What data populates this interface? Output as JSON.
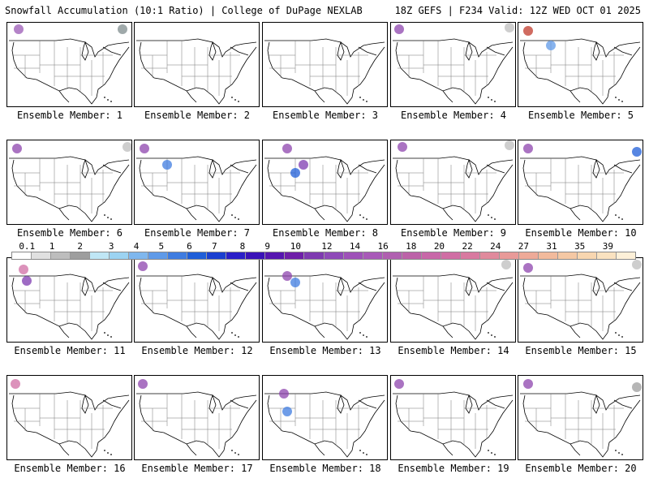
{
  "header": {
    "left_title": "Snowfall Accumulation (10:1 Ratio) | College of DuPage NEXLAB",
    "right_title": "18Z GEFS | F234 Valid: 12Z WED OCT 01 2025"
  },
  "panels": [
    {
      "label": "Ensemble Member: 1"
    },
    {
      "label": "Ensemble Member: 2"
    },
    {
      "label": "Ensemble Member: 3"
    },
    {
      "label": "Ensemble Member: 4"
    },
    {
      "label": "Ensemble Member: 5"
    },
    {
      "label": "Ensemble Member: 6"
    },
    {
      "label": "Ensemble Member: 7"
    },
    {
      "label": "Ensemble Member: 8"
    },
    {
      "label": "Ensemble Member: 9"
    },
    {
      "label": "Ensemble Member: 10"
    },
    {
      "label": "Ensemble Member: 11"
    },
    {
      "label": "Ensemble Member: 12"
    },
    {
      "label": "Ensemble Member: 13"
    },
    {
      "label": "Ensemble Member: 14"
    },
    {
      "label": "Ensemble Member: 15"
    },
    {
      "label": "Ensemble Member: 16"
    },
    {
      "label": "Ensemble Member: 17"
    },
    {
      "label": "Ensemble Member: 18"
    },
    {
      "label": "Ensemble Member: 19"
    },
    {
      "label": "Ensemble Member: 20"
    }
  ],
  "chart_data": {
    "type": "heatmap",
    "color_scale": {
      "labels": [
        "0.1",
        "1",
        "2",
        "3",
        "4",
        "5",
        "6",
        "7",
        "8",
        "9",
        "10",
        "12",
        "14",
        "16",
        "18",
        "20",
        "22",
        "24",
        "27",
        "31",
        "35",
        "39"
      ],
      "colors": [
        "#ffffff",
        "#e0e0e0",
        "#bdbdbd",
        "#9e9e9e",
        "#bfe6f5",
        "#9cd3f2",
        "#7fb7ee",
        "#5f9ae8",
        "#3f7ce0",
        "#1f5ed8",
        "#1a3fd0",
        "#2a1fc8",
        "#3a12b8",
        "#5616b0",
        "#6e1fa8",
        "#7e3ab0",
        "#8e4ab8",
        "#9e52b8",
        "#a85ab8",
        "#b060b0",
        "#bc62a8",
        "#c868a8",
        "#d06ea4",
        "#d87aa0",
        "#e08a9c",
        "#e89a98",
        "#eeaa98",
        "#f2ba9c",
        "#f5c8a4",
        "#f8d6b0",
        "#faE2c0",
        "#fdf0d8"
      ]
    }
  }
}
